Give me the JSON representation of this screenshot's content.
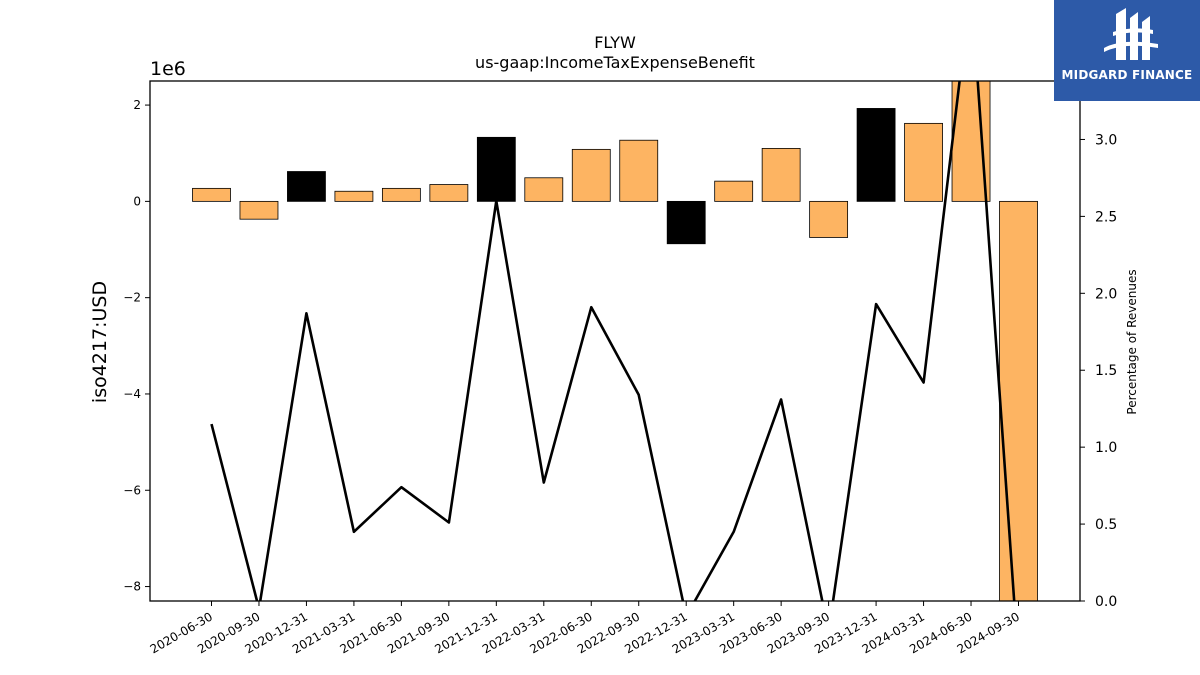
{
  "chart_data": {
    "type": "bar",
    "title": "FLYW",
    "subtitle": "us-gaap:IncomeTaxExpenseBenefit",
    "ylabel": "iso4217:USD",
    "y_offset_label": "1e6",
    "y2label": "Percentage of Revenues",
    "categories": [
      "2020-06-30",
      "2020-09-30",
      "2020-12-31",
      "2021-03-31",
      "2021-06-30",
      "2021-09-30",
      "2021-12-31",
      "2022-03-31",
      "2022-06-30",
      "2022-09-30",
      "2022-12-31",
      "2023-03-31",
      "2023-06-30",
      "2023-09-30",
      "2023-12-31",
      "2024-03-31",
      "2024-06-30",
      "2024-09-30"
    ],
    "series": [
      {
        "type": "bar",
        "values": [
          0.27,
          -0.37,
          0.62,
          0.21,
          0.27,
          0.35,
          1.33,
          0.49,
          1.08,
          1.27,
          -0.88,
          0.42,
          1.1,
          -0.75,
          1.93,
          1.62,
          2.6,
          -8.5
        ],
        "colors": [
          "#fdb462",
          "#fdb462",
          "#000000",
          "#fdb462",
          "#fdb462",
          "#fdb462",
          "#000000",
          "#fdb462",
          "#fdb462",
          "#fdb462",
          "#000000",
          "#fdb462",
          "#fdb462",
          "#fdb462",
          "#000000",
          "#fdb462",
          "#fdb462",
          "#fdb462"
        ]
      },
      {
        "type": "line",
        "axis": "right",
        "color": "#000000",
        "values": [
          1.15,
          -0.05,
          1.87,
          0.45,
          0.74,
          0.51,
          2.6,
          0.77,
          1.91,
          1.34,
          -0.1,
          0.45,
          1.31,
          -0.2,
          1.93,
          1.42,
          4.0,
          -0.4
        ]
      }
    ],
    "ylim": [
      -8.3,
      2.5
    ],
    "y_ticks": [
      2,
      0,
      -2,
      -4,
      -6,
      -8
    ],
    "y_tick_labels": [
      "2",
      "0",
      "−2",
      "−4",
      "−6",
      "−8"
    ],
    "y2lim": [
      0.0,
      3.38
    ],
    "y2_ticks": [
      0.0,
      0.5,
      1.0,
      1.5,
      2.0,
      2.5,
      3.0
    ],
    "y2_tick_labels": [
      "0.0",
      "0.5",
      "1.0",
      "1.5",
      "2.0",
      "2.5",
      "3.0"
    ],
    "grid": false,
    "legend": "none"
  },
  "logo": {
    "text": "MIDGARD FINANCE",
    "icon": "midgard-logo-icon",
    "background": "#2d5aa8"
  }
}
